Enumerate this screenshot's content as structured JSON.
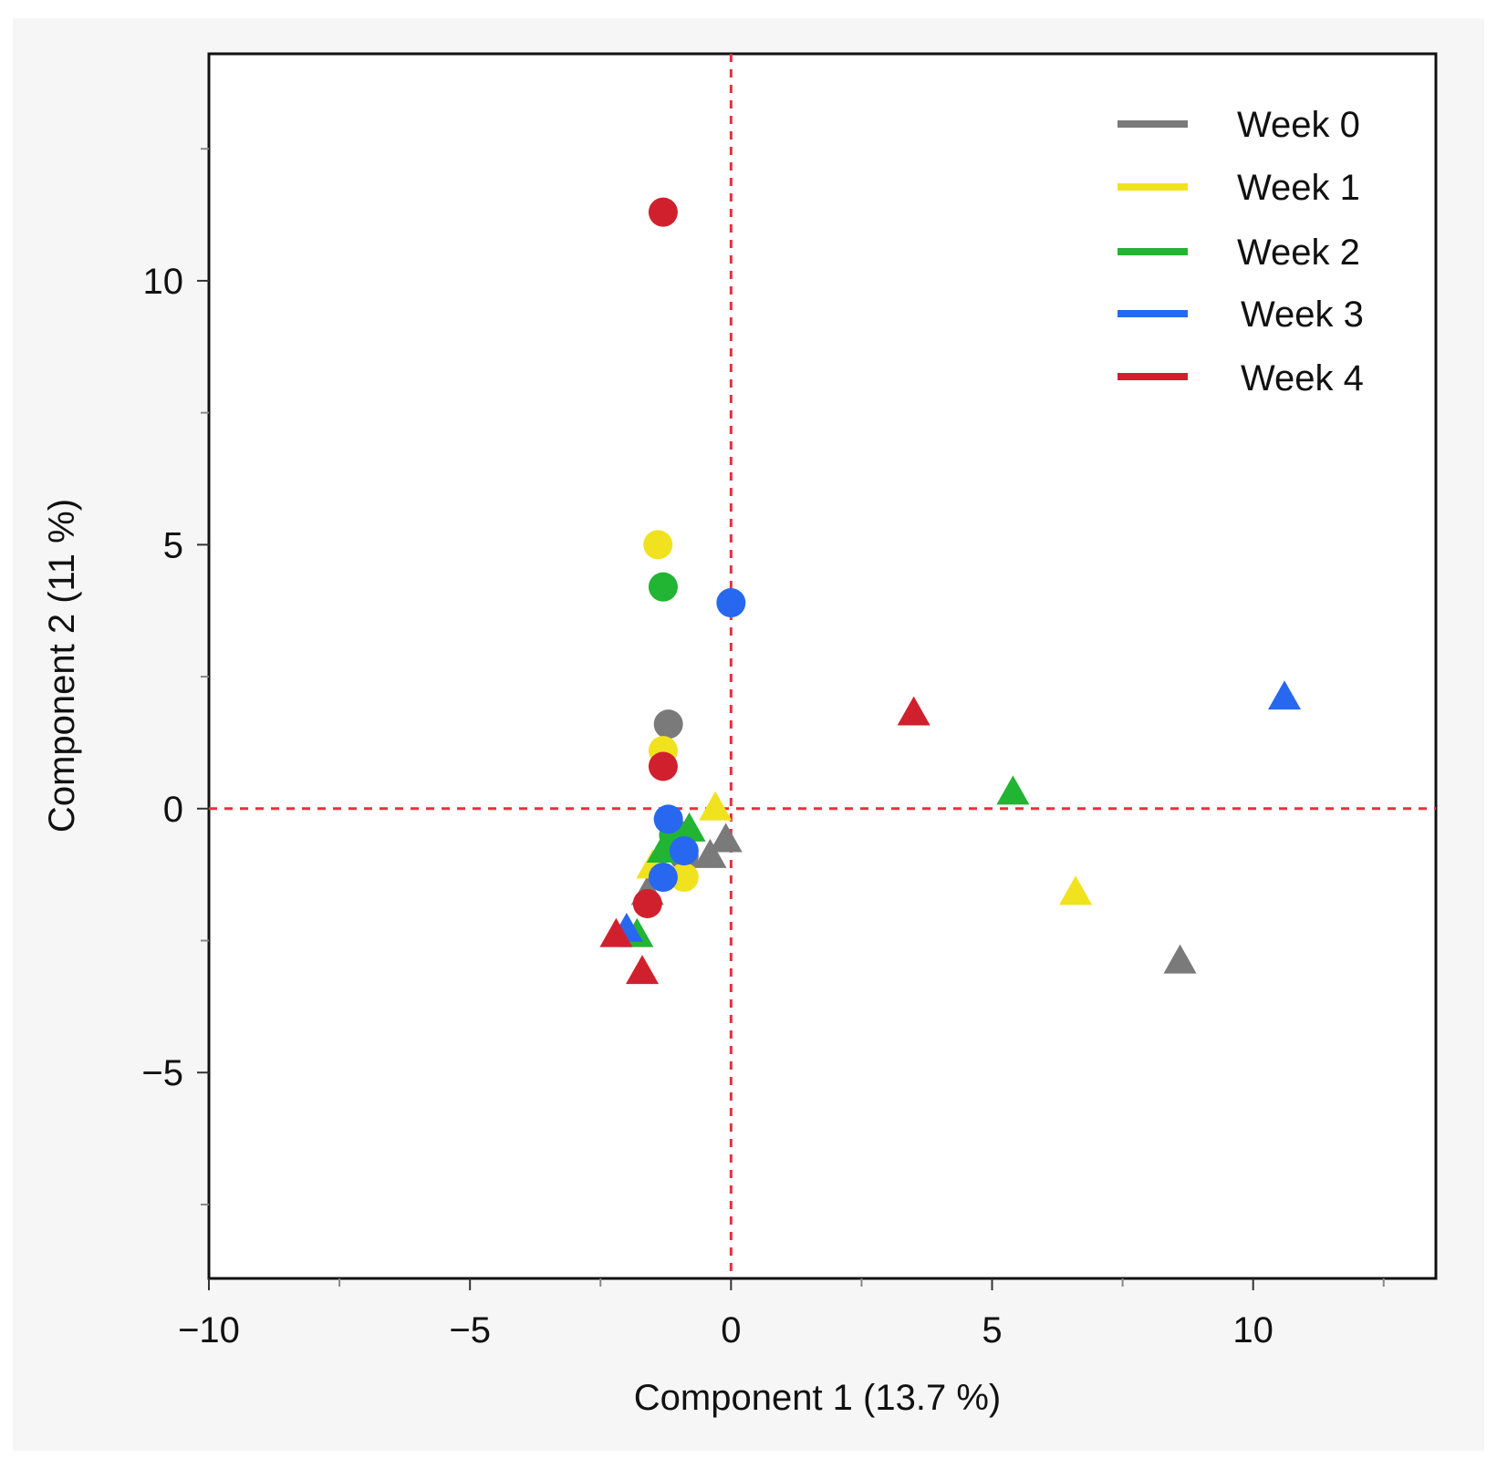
{
  "chart_data": {
    "type": "scatter",
    "title": "",
    "xlabel": "Component 1  (13.7 %)",
    "ylabel": "Component 2  (11 %)",
    "xlim": [
      -10,
      13.5
    ],
    "ylim": [
      -8.9,
      14.3
    ],
    "xticks": [
      -10,
      -5,
      0,
      5,
      10
    ],
    "xtick_labels": [
      "−10",
      "−5",
      "0",
      "5",
      "10"
    ],
    "x_minor_ticks": [
      -7.5,
      -2.5,
      2.5,
      7.5,
      12.5
    ],
    "yticks": [
      -5,
      0,
      5,
      10
    ],
    "ytick_labels": [
      "−5",
      "0",
      "5",
      "10"
    ],
    "y_minor_ticks": [
      -7.5,
      -2.5,
      2.5,
      7.5,
      12.5
    ],
    "reference_lines": {
      "x": 0,
      "y": 0,
      "color": "#e8303e",
      "style": "dashed"
    },
    "legend_position": "top-right",
    "marker_shapes": [
      "circle",
      "triangle"
    ],
    "series": [
      {
        "name": "Week 0",
        "color": "#7a7a7a",
        "points": [
          {
            "x": -1.2,
            "y": 1.6,
            "marker": "circle"
          },
          {
            "x": -1.0,
            "y": -0.5,
            "marker": "circle"
          },
          {
            "x": -0.9,
            "y": -0.9,
            "marker": "circle"
          },
          {
            "x": -1.6,
            "y": -1.6,
            "marker": "triangle"
          },
          {
            "x": -0.4,
            "y": -0.9,
            "marker": "triangle"
          },
          {
            "x": -0.1,
            "y": -0.6,
            "marker": "triangle"
          },
          {
            "x": 8.6,
            "y": -2.9,
            "marker": "triangle"
          }
        ]
      },
      {
        "name": "Week 1",
        "color": "#f0e21e",
        "points": [
          {
            "x": -1.4,
            "y": 5.0,
            "marker": "circle"
          },
          {
            "x": -1.3,
            "y": 1.1,
            "marker": "circle"
          },
          {
            "x": -0.9,
            "y": -1.3,
            "marker": "circle"
          },
          {
            "x": -1.5,
            "y": -1.1,
            "marker": "triangle"
          },
          {
            "x": -0.3,
            "y": 0.0,
            "marker": "triangle"
          },
          {
            "x": 6.6,
            "y": -1.6,
            "marker": "triangle"
          }
        ]
      },
      {
        "name": "Week 2",
        "color": "#22b433",
        "points": [
          {
            "x": -1.3,
            "y": 4.2,
            "marker": "circle"
          },
          {
            "x": -1.1,
            "y": -0.5,
            "marker": "circle"
          },
          {
            "x": -0.8,
            "y": -0.4,
            "marker": "triangle"
          },
          {
            "x": -1.3,
            "y": -0.8,
            "marker": "triangle"
          },
          {
            "x": -1.8,
            "y": -2.4,
            "marker": "triangle"
          },
          {
            "x": 5.4,
            "y": 0.3,
            "marker": "triangle"
          }
        ]
      },
      {
        "name": "Week 3",
        "color": "#2868f0",
        "points": [
          {
            "x": 0.0,
            "y": 3.9,
            "marker": "circle"
          },
          {
            "x": -1.2,
            "y": -0.2,
            "marker": "circle"
          },
          {
            "x": -0.9,
            "y": -0.8,
            "marker": "circle"
          },
          {
            "x": -1.3,
            "y": -1.3,
            "marker": "circle"
          },
          {
            "x": -2.0,
            "y": -2.3,
            "marker": "triangle"
          },
          {
            "x": 10.6,
            "y": 2.1,
            "marker": "triangle"
          }
        ]
      },
      {
        "name": "Week 4",
        "color": "#d0202e",
        "points": [
          {
            "x": -1.3,
            "y": 11.3,
            "marker": "circle"
          },
          {
            "x": -1.3,
            "y": 0.8,
            "marker": "circle"
          },
          {
            "x": -1.6,
            "y": -1.8,
            "marker": "circle"
          },
          {
            "x": -2.2,
            "y": -2.4,
            "marker": "triangle"
          },
          {
            "x": -1.7,
            "y": -3.1,
            "marker": "triangle"
          },
          {
            "x": 3.5,
            "y": 1.8,
            "marker": "triangle"
          }
        ]
      }
    ]
  }
}
